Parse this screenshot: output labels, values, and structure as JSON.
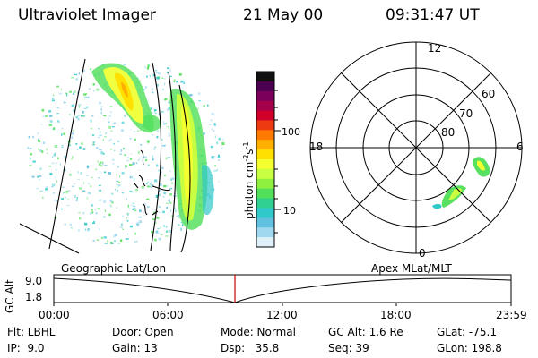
{
  "header": {
    "title": "Ultraviolet Imager",
    "date": "21 May 00",
    "time": "09:31:47 UT"
  },
  "colorbar": {
    "label": "photon cm",
    "label_exp1": "-2",
    "label_mid": "s",
    "label_exp2": "-1",
    "ticks": [
      "100",
      "10"
    ],
    "colors": [
      "#111111",
      "#4b0050",
      "#7a005c",
      "#a5004a",
      "#d0002a",
      "#ee3a10",
      "#ff7a00",
      "#ffb000",
      "#ffe000",
      "#f4ff30",
      "#c8ff40",
      "#90f040",
      "#50e05a",
      "#30d090",
      "#30c8c8",
      "#60c0e0",
      "#a0d8f0",
      "#e0f0f8"
    ]
  },
  "polar": {
    "mlt_labels": {
      "top": "12",
      "right": "6",
      "bottom": "0",
      "left": "18"
    },
    "lat_labels": [
      "60",
      "70",
      "80"
    ]
  },
  "plot": {
    "left_label": "Geographic Lat/Lon",
    "right_label": "Apex MLat/MLT",
    "axis_title": "GC Alt",
    "y_ticks": [
      "9.0",
      "1.8"
    ],
    "x_ticks": [
      "00:00",
      "06:00",
      "12:00",
      "18:00",
      "23:59"
    ],
    "marker_color": "#cc0000"
  },
  "info": {
    "row1": {
      "flt": "Flt: LBHL",
      "door": "Door: Open",
      "mode": "Mode: Normal",
      "gcalt": "GC Alt: 1.6 Re",
      "glat": "GLat: -75.1"
    },
    "row2": {
      "ip": "IP:  9.0",
      "gain": "Gain: 13",
      "dsp": "Dsp:   35.8",
      "seq": "Seq: 39",
      "glon": "GLon: 198.8"
    }
  }
}
